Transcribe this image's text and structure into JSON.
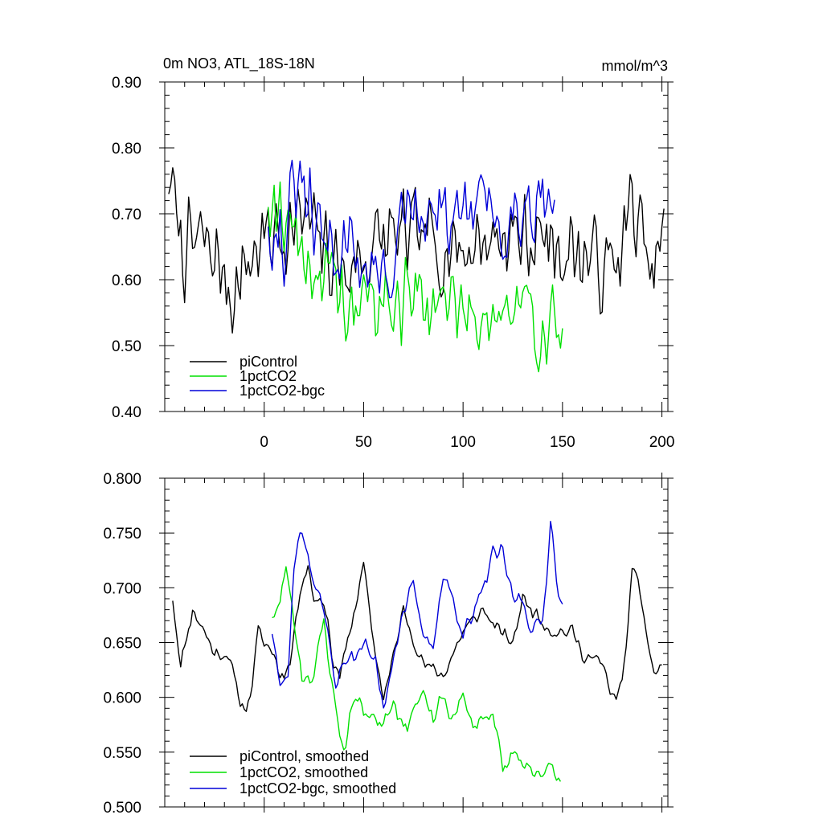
{
  "title_left": "0m NO3, ATL_18S-18N",
  "title_right": "mmol/m^3",
  "colors": {
    "piControl": "#000000",
    "1pctCO2": "#00e000",
    "1pctCO2-bgc": "#0000d8",
    "frame": "#000000"
  },
  "chart_data": [
    {
      "type": "line",
      "x_tick_labels": [
        "0",
        "50",
        "100",
        "150",
        "200"
      ],
      "x_ticks": [
        0,
        50,
        100,
        150,
        200
      ],
      "xlim": [
        -50,
        203
      ],
      "ylim": [
        0.4,
        0.9
      ],
      "y_tick_labels": [
        "0.40",
        "0.50",
        "0.60",
        "0.70",
        "0.80",
        "0.90"
      ],
      "y_ticks": [
        0.4,
        0.5,
        0.6,
        0.7,
        0.8,
        0.9
      ],
      "legend_position": "bottom-left",
      "series": [
        {
          "name": "piControl",
          "color": "#000000",
          "x0": -48,
          "noise": 0.085,
          "seed": 7,
          "anchors": [
            [
              -48,
              0.75
            ],
            [
              -40,
              0.64
            ],
            [
              -30,
              0.66
            ],
            [
              -15,
              0.58
            ],
            [
              -8,
              0.63
            ],
            [
              0,
              0.66
            ],
            [
              20,
              0.69
            ],
            [
              40,
              0.61
            ],
            [
              60,
              0.66
            ],
            [
              80,
              0.66
            ],
            [
              100,
              0.65
            ],
            [
              120,
              0.67
            ],
            [
              140,
              0.66
            ],
            [
              160,
              0.64
            ],
            [
              175,
              0.61
            ],
            [
              185,
              0.71
            ],
            [
              195,
              0.6
            ],
            [
              201,
              0.66
            ]
          ]
        },
        {
          "name": "1pctCO2",
          "color": "#00e000",
          "x0": 2,
          "noise": 0.085,
          "seed": 19,
          "anchors": [
            [
              2,
              0.73
            ],
            [
              10,
              0.71
            ],
            [
              20,
              0.64
            ],
            [
              30,
              0.6
            ],
            [
              40,
              0.56
            ],
            [
              50,
              0.57
            ],
            [
              60,
              0.56
            ],
            [
              80,
              0.57
            ],
            [
              100,
              0.56
            ],
            [
              120,
              0.55
            ],
            [
              140,
              0.53
            ],
            [
              150,
              0.53
            ]
          ]
        },
        {
          "name": "1pctCO2-bgc",
          "color": "#0000d8",
          "x0": 2,
          "noise": 0.085,
          "seed": 31,
          "anchors": [
            [
              2,
              0.7
            ],
            [
              10,
              0.65
            ],
            [
              17,
              0.75
            ],
            [
              25,
              0.67
            ],
            [
              40,
              0.65
            ],
            [
              60,
              0.6
            ],
            [
              70,
              0.68
            ],
            [
              90,
              0.69
            ],
            [
              110,
              0.71
            ],
            [
              125,
              0.7
            ],
            [
              140,
              0.74
            ],
            [
              146,
              0.7
            ]
          ]
        }
      ]
    },
    {
      "type": "line",
      "x_ticks": [
        0,
        50,
        100,
        150,
        200
      ],
      "xlim": [
        -50,
        203
      ],
      "ylim": [
        0.5,
        0.8
      ],
      "y_tick_labels": [
        "0.500",
        "0.550",
        "0.600",
        "0.650",
        "0.700",
        "0.750",
        "0.800"
      ],
      "y_ticks": [
        0.5,
        0.55,
        0.6,
        0.65,
        0.7,
        0.75,
        0.8
      ],
      "legend_position": "bottom-left",
      "series": [
        {
          "name": "piControl, smoothed",
          "color": "#000000",
          "x0": -46,
          "noise": 0.008,
          "seed": 11,
          "anchors": [
            [
              -46,
              0.69
            ],
            [
              -42,
              0.63
            ],
            [
              -36,
              0.68
            ],
            [
              -30,
              0.66
            ],
            [
              -25,
              0.64
            ],
            [
              -18,
              0.64
            ],
            [
              -13,
              0.6
            ],
            [
              -10,
              0.59
            ],
            [
              -7,
              0.6
            ],
            [
              -3,
              0.66
            ],
            [
              0,
              0.65
            ],
            [
              5,
              0.64
            ],
            [
              8,
              0.62
            ],
            [
              13,
              0.63
            ],
            [
              18,
              0.7
            ],
            [
              22,
              0.72
            ],
            [
              25,
              0.69
            ],
            [
              30,
              0.69
            ],
            [
              35,
              0.63
            ],
            [
              38,
              0.62
            ],
            [
              42,
              0.65
            ],
            [
              50,
              0.72
            ],
            [
              55,
              0.65
            ],
            [
              60,
              0.6
            ],
            [
              63,
              0.62
            ],
            [
              70,
              0.68
            ],
            [
              80,
              0.63
            ],
            [
              90,
              0.62
            ],
            [
              95,
              0.64
            ],
            [
              100,
              0.66
            ],
            [
              110,
              0.68
            ],
            [
              118,
              0.66
            ],
            [
              125,
              0.65
            ],
            [
              130,
              0.69
            ],
            [
              140,
              0.67
            ],
            [
              145,
              0.66
            ],
            [
              155,
              0.66
            ],
            [
              160,
              0.64
            ],
            [
              170,
              0.63
            ],
            [
              175,
              0.6
            ],
            [
              180,
              0.61
            ],
            [
              185,
              0.71
            ],
            [
              188,
              0.71
            ],
            [
              192,
              0.66
            ],
            [
              196,
              0.62
            ],
            [
              200,
              0.63
            ]
          ]
        },
        {
          "name": "1pctCO2, smoothed",
          "color": "#00e000",
          "x0": 4,
          "noise": 0.01,
          "seed": 23,
          "anchors": [
            [
              4,
              0.675
            ],
            [
              8,
              0.685
            ],
            [
              11,
              0.72
            ],
            [
              15,
              0.67
            ],
            [
              19,
              0.62
            ],
            [
              25,
              0.62
            ],
            [
              30,
              0.67
            ],
            [
              35,
              0.6
            ],
            [
              40,
              0.55
            ],
            [
              45,
              0.6
            ],
            [
              50,
              0.59
            ],
            [
              55,
              0.58
            ],
            [
              60,
              0.58
            ],
            [
              65,
              0.6
            ],
            [
              70,
              0.57
            ],
            [
              75,
              0.59
            ],
            [
              80,
              0.6
            ],
            [
              85,
              0.58
            ],
            [
              90,
              0.6
            ],
            [
              95,
              0.58
            ],
            [
              100,
              0.6
            ],
            [
              105,
              0.575
            ],
            [
              110,
              0.58
            ],
            [
              115,
              0.59
            ],
            [
              120,
              0.53
            ],
            [
              125,
              0.55
            ],
            [
              130,
              0.54
            ],
            [
              135,
              0.525
            ],
            [
              140,
              0.53
            ],
            [
              145,
              0.535
            ],
            [
              149,
              0.525
            ]
          ]
        },
        {
          "name": "1pctCO2-bgc, smoothed",
          "color": "#0000d8",
          "x0": 4,
          "noise": 0.01,
          "seed": 37,
          "anchors": [
            [
              4,
              0.66
            ],
            [
              8,
              0.62
            ],
            [
              12,
              0.62
            ],
            [
              15,
              0.72
            ],
            [
              18,
              0.755
            ],
            [
              23,
              0.72
            ],
            [
              30,
              0.68
            ],
            [
              36,
              0.61
            ],
            [
              40,
              0.63
            ],
            [
              50,
              0.65
            ],
            [
              56,
              0.63
            ],
            [
              60,
              0.59
            ],
            [
              65,
              0.64
            ],
            [
              70,
              0.68
            ],
            [
              75,
              0.7
            ],
            [
              80,
              0.655
            ],
            [
              85,
              0.65
            ],
            [
              90,
              0.71
            ],
            [
              95,
              0.69
            ],
            [
              100,
              0.66
            ],
            [
              105,
              0.67
            ],
            [
              110,
              0.7
            ],
            [
              115,
              0.73
            ],
            [
              120,
              0.73
            ],
            [
              125,
              0.69
            ],
            [
              130,
              0.69
            ],
            [
              135,
              0.66
            ],
            [
              140,
              0.67
            ],
            [
              144,
              0.76
            ],
            [
              148,
              0.7
            ],
            [
              150,
              0.68
            ]
          ]
        }
      ]
    }
  ]
}
